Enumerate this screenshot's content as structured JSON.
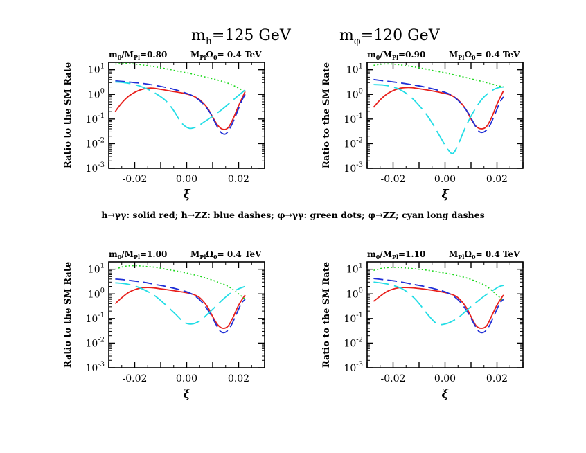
{
  "header": {
    "mh_sym": "m",
    "mh_sub": "h",
    "mh_val": "=125 GeV",
    "mphi_sym": "m",
    "mphi_sub": "φ",
    "mphi_val": "=120 GeV"
  },
  "caption": "h→γγ: solid red; h→ZZ: blue dashes; φ→γγ: green dots; φ→ZZ; cyan long dashes",
  "colors": {
    "h_gg": "#e8201c",
    "h_zz": "#1f2fd6",
    "phi_gg": "#1ed81e",
    "phi_zz": "#22dde6"
  },
  "chart_data": [
    {
      "type": "line",
      "panel_label_m": "m",
      "panel_label_m_sub": "0",
      "panel_label_m_slash": "/M",
      "panel_label_m_sub2": "Pl",
      "panel_label_m_val": "=0.80",
      "panel_label_o": "M",
      "panel_label_o_sub": "Pl",
      "panel_label_o_omega": "Ω",
      "panel_label_o_sub2": "0",
      "panel_label_o_val": "= 0.4 TeV",
      "xlabel": "ξ",
      "ylabel": "Ratio to the SM Rate",
      "xlim": [
        -0.03,
        0.03
      ],
      "ylim_log10": [
        -3,
        1.3
      ],
      "yscale": "log",
      "xticks": [
        "-0.02",
        "0.00",
        "0.02"
      ],
      "yticks": [
        "10",
        "10",
        "10",
        "10",
        "10"
      ],
      "ytick_exps": [
        "1",
        "0",
        "-1",
        "-2",
        "-3"
      ],
      "series": [
        {
          "key": "h_gg",
          "x": [
            -0.0275,
            -0.025,
            -0.022,
            -0.018,
            -0.014,
            -0.01,
            -0.006,
            -0.002,
            0.002,
            0.005,
            0.008,
            0.01,
            0.012,
            0.014,
            0.016,
            0.018,
            0.02,
            0.0225
          ],
          "y": [
            0.2,
            0.45,
            0.9,
            1.5,
            1.8,
            1.6,
            1.35,
            1.15,
            0.9,
            0.6,
            0.28,
            0.12,
            0.055,
            0.038,
            0.045,
            0.11,
            0.35,
            1.3
          ]
        },
        {
          "key": "h_zz",
          "x": [
            -0.0275,
            -0.024,
            -0.02,
            -0.016,
            -0.012,
            -0.008,
            -0.004,
            0.0,
            0.003,
            0.006,
            0.009,
            0.011,
            0.013,
            0.015,
            0.017,
            0.019,
            0.021,
            0.0225
          ],
          "y": [
            3.5,
            3.3,
            3.0,
            2.7,
            2.3,
            1.9,
            1.5,
            1.1,
            0.8,
            0.45,
            0.18,
            0.07,
            0.03,
            0.025,
            0.05,
            0.15,
            0.5,
            1.0
          ]
        },
        {
          "key": "phi_gg",
          "x": [
            -0.0275,
            -0.024,
            -0.02,
            -0.016,
            -0.012,
            -0.008,
            -0.004,
            0.0,
            0.004,
            0.008,
            0.012,
            0.016,
            0.02,
            0.0225
          ],
          "y": [
            17,
            18,
            17,
            15,
            13,
            11,
            9,
            7.5,
            6,
            4.8,
            3.8,
            2.8,
            1.8,
            1.2
          ]
        },
        {
          "key": "phi_zz",
          "x": [
            -0.0275,
            -0.024,
            -0.02,
            -0.016,
            -0.012,
            -0.008,
            -0.005,
            -0.002,
            0.001,
            0.004,
            0.007,
            0.01,
            0.013,
            0.016,
            0.019,
            0.0225
          ],
          "y": [
            3.2,
            3.0,
            2.5,
            1.8,
            1.1,
            0.55,
            0.22,
            0.07,
            0.042,
            0.05,
            0.08,
            0.13,
            0.22,
            0.4,
            0.75,
            1.5
          ]
        }
      ]
    },
    {
      "type": "line",
      "panel_label_m": "m",
      "panel_label_m_sub": "0",
      "panel_label_m_slash": "/M",
      "panel_label_m_sub2": "Pl",
      "panel_label_m_val": "=0.90",
      "panel_label_o": "M",
      "panel_label_o_sub": "Pl",
      "panel_label_o_omega": "Ω",
      "panel_label_o_sub2": "0",
      "panel_label_o_val": "= 0.4 TeV",
      "xlabel": "ξ",
      "ylabel": "Ratio to the SM Rate",
      "xlim": [
        -0.03,
        0.03
      ],
      "ylim_log10": [
        -3,
        1.3
      ],
      "yscale": "log",
      "xticks": [
        "-0.02",
        "0.00",
        "0.02"
      ],
      "yticks": [
        "10",
        "10",
        "10",
        "10",
        "10"
      ],
      "ytick_exps": [
        "1",
        "0",
        "-1",
        "-2",
        "-3"
      ],
      "series": [
        {
          "key": "h_gg",
          "x": [
            -0.0275,
            -0.025,
            -0.022,
            -0.018,
            -0.014,
            -0.01,
            -0.006,
            -0.002,
            0.002,
            0.005,
            0.008,
            0.01,
            0.012,
            0.014,
            0.016,
            0.018,
            0.02,
            0.0225
          ],
          "y": [
            0.3,
            0.6,
            1.1,
            1.7,
            1.9,
            1.7,
            1.45,
            1.2,
            0.95,
            0.6,
            0.25,
            0.1,
            0.05,
            0.04,
            0.05,
            0.12,
            0.4,
            1.4
          ]
        },
        {
          "key": "h_zz",
          "x": [
            -0.0275,
            -0.024,
            -0.02,
            -0.016,
            -0.012,
            -0.008,
            -0.004,
            0.0,
            0.003,
            0.006,
            0.009,
            0.011,
            0.013,
            0.015,
            0.017,
            0.019,
            0.021,
            0.0225
          ],
          "y": [
            4.0,
            3.6,
            3.2,
            2.8,
            2.4,
            2.0,
            1.6,
            1.2,
            0.85,
            0.45,
            0.17,
            0.07,
            0.032,
            0.03,
            0.05,
            0.14,
            0.45,
            0.8
          ]
        },
        {
          "key": "phi_gg",
          "x": [
            -0.0275,
            -0.024,
            -0.02,
            -0.016,
            -0.012,
            -0.008,
            -0.004,
            0.0,
            0.004,
            0.008,
            0.012,
            0.016,
            0.02,
            0.0225
          ],
          "y": [
            15,
            17,
            17,
            15,
            13,
            11,
            9,
            7.5,
            6,
            4.8,
            3.8,
            3.0,
            2.3,
            2.0
          ]
        },
        {
          "key": "phi_zz",
          "x": [
            -0.0275,
            -0.024,
            -0.02,
            -0.016,
            -0.012,
            -0.008,
            -0.005,
            -0.002,
            0.001,
            0.003,
            0.005,
            0.008,
            0.011,
            0.014,
            0.017,
            0.02,
            0.0225
          ],
          "y": [
            2.5,
            2.4,
            2.0,
            1.3,
            0.6,
            0.2,
            0.07,
            0.02,
            0.006,
            0.004,
            0.009,
            0.05,
            0.2,
            0.6,
            1.2,
            1.8,
            2.0
          ]
        }
      ]
    },
    {
      "type": "line",
      "panel_label_m": "m",
      "panel_label_m_sub": "0",
      "panel_label_m_slash": "/M",
      "panel_label_m_sub2": "Pl",
      "panel_label_m_val": "=1.00",
      "panel_label_o": "M",
      "panel_label_o_sub": "Pl",
      "panel_label_o_omega": "Ω",
      "panel_label_o_sub2": "0",
      "panel_label_o_val": "= 0.4 TeV",
      "xlabel": "ξ",
      "ylabel": "Ratio to the SM Rate",
      "xlim": [
        -0.03,
        0.03
      ],
      "ylim_log10": [
        -3,
        1.3
      ],
      "yscale": "log",
      "xticks": [
        "-0.02",
        "0.00",
        "0.02"
      ],
      "yticks": [
        "10",
        "10",
        "10",
        "10",
        "10"
      ],
      "ytick_exps": [
        "1",
        "0",
        "-1",
        "-2",
        "-3"
      ],
      "series": [
        {
          "key": "h_gg",
          "x": [
            -0.0275,
            -0.025,
            -0.022,
            -0.018,
            -0.014,
            -0.01,
            -0.006,
            -0.002,
            0.002,
            0.005,
            0.008,
            0.01,
            0.012,
            0.014,
            0.016,
            0.018,
            0.02,
            0.0225
          ],
          "y": [
            0.4,
            0.7,
            1.2,
            1.7,
            1.8,
            1.6,
            1.4,
            1.2,
            1.0,
            0.7,
            0.3,
            0.12,
            0.055,
            0.04,
            0.05,
            0.12,
            0.35,
            0.9
          ]
        },
        {
          "key": "h_zz",
          "x": [
            -0.0275,
            -0.024,
            -0.02,
            -0.016,
            -0.012,
            -0.008,
            -0.004,
            0.0,
            0.003,
            0.006,
            0.009,
            0.011,
            0.013,
            0.015,
            0.017,
            0.019,
            0.021,
            0.0225
          ],
          "y": [
            4.0,
            3.7,
            3.3,
            2.9,
            2.4,
            2.0,
            1.6,
            1.2,
            0.85,
            0.45,
            0.16,
            0.065,
            0.03,
            0.028,
            0.05,
            0.14,
            0.4,
            0.6
          ]
        },
        {
          "key": "phi_gg",
          "x": [
            -0.0275,
            -0.024,
            -0.02,
            -0.016,
            -0.012,
            -0.008,
            -0.004,
            0.0,
            0.004,
            0.008,
            0.012,
            0.016,
            0.02,
            0.0225
          ],
          "y": [
            10,
            13,
            14,
            13,
            12,
            10,
            8.5,
            7,
            5.5,
            4.2,
            3.0,
            2.0,
            1.0,
            0.6
          ]
        },
        {
          "key": "phi_zz",
          "x": [
            -0.0275,
            -0.024,
            -0.02,
            -0.016,
            -0.012,
            -0.008,
            -0.004,
            -0.001,
            0.002,
            0.005,
            0.008,
            0.011,
            0.014,
            0.017,
            0.02,
            0.0225
          ],
          "y": [
            2.8,
            2.6,
            2.1,
            1.4,
            0.8,
            0.35,
            0.14,
            0.07,
            0.06,
            0.08,
            0.15,
            0.3,
            0.6,
            1.1,
            1.6,
            2.0
          ]
        }
      ]
    },
    {
      "type": "line",
      "panel_label_m": "m",
      "panel_label_m_sub": "0",
      "panel_label_m_slash": "/M",
      "panel_label_m_sub2": "Pl",
      "panel_label_m_val": "=1.10",
      "panel_label_o": "M",
      "panel_label_o_sub": "Pl",
      "panel_label_o_omega": "Ω",
      "panel_label_o_sub2": "0",
      "panel_label_o_val": "= 0.4 TeV",
      "xlabel": "ξ",
      "ylabel": "Ratio to the SM Rate",
      "xlim": [
        -0.03,
        0.03
      ],
      "ylim_log10": [
        -3,
        1.3
      ],
      "yscale": "log",
      "xticks": [
        "-0.02",
        "0.00",
        "0.02"
      ],
      "yticks": [
        "10",
        "10",
        "10",
        "10",
        "10"
      ],
      "ytick_exps": [
        "1",
        "0",
        "-1",
        "-2",
        "-3"
      ],
      "series": [
        {
          "key": "h_gg",
          "x": [
            -0.0275,
            -0.025,
            -0.022,
            -0.018,
            -0.014,
            -0.01,
            -0.006,
            -0.002,
            0.002,
            0.005,
            0.008,
            0.01,
            0.012,
            0.014,
            0.016,
            0.018,
            0.02,
            0.0225
          ],
          "y": [
            0.5,
            0.8,
            1.3,
            1.75,
            1.8,
            1.65,
            1.45,
            1.25,
            1.0,
            0.7,
            0.3,
            0.12,
            0.05,
            0.04,
            0.05,
            0.13,
            0.35,
            0.9
          ]
        },
        {
          "key": "h_zz",
          "x": [
            -0.0275,
            -0.024,
            -0.02,
            -0.016,
            -0.012,
            -0.008,
            -0.004,
            0.0,
            0.003,
            0.006,
            0.009,
            0.011,
            0.013,
            0.015,
            0.017,
            0.019,
            0.021,
            0.0225
          ],
          "y": [
            4.2,
            3.8,
            3.4,
            2.9,
            2.4,
            2.0,
            1.6,
            1.2,
            0.85,
            0.45,
            0.16,
            0.065,
            0.03,
            0.028,
            0.05,
            0.14,
            0.4,
            0.6
          ]
        },
        {
          "key": "phi_gg",
          "x": [
            -0.0275,
            -0.024,
            -0.02,
            -0.016,
            -0.012,
            -0.008,
            -0.004,
            0.0,
            0.004,
            0.008,
            0.012,
            0.016,
            0.02,
            0.0225
          ],
          "y": [
            9,
            11,
            12,
            11.5,
            10.5,
            9.5,
            8.3,
            7,
            5.8,
            4.5,
            3.2,
            2.0,
            0.9,
            0.5
          ]
        },
        {
          "key": "phi_zz",
          "x": [
            -0.0275,
            -0.024,
            -0.02,
            -0.016,
            -0.012,
            -0.009,
            -0.006,
            -0.003,
            0.0,
            0.003,
            0.006,
            0.009,
            0.012,
            0.015,
            0.018,
            0.021,
            0.0225
          ],
          "y": [
            3.0,
            2.7,
            2.2,
            1.5,
            0.7,
            0.3,
            0.12,
            0.06,
            0.06,
            0.08,
            0.13,
            0.25,
            0.45,
            0.8,
            1.3,
            2.0,
            2.2
          ]
        }
      ]
    }
  ]
}
